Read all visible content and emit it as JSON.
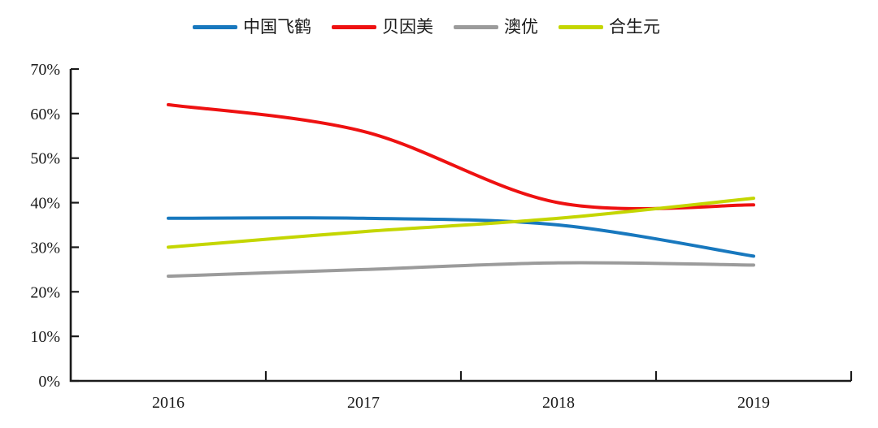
{
  "chart_data": {
    "type": "line",
    "categories": [
      "2016",
      "2017",
      "2018",
      "2019"
    ],
    "series": [
      {
        "name": "中国飞鹤",
        "color": "#1878BE",
        "values": [
          36.5,
          36.5,
          35.0,
          28.0
        ]
      },
      {
        "name": "贝因美",
        "color": "#EE1111",
        "values": [
          62.0,
          56.0,
          40.0,
          39.5
        ]
      },
      {
        "name": "澳优",
        "color": "#9B9B9B",
        "values": [
          23.5,
          25.0,
          26.5,
          26.0
        ]
      },
      {
        "name": "合生元",
        "color": "#C4D600",
        "values": [
          30.0,
          33.5,
          36.5,
          41.0
        ]
      }
    ],
    "ylim": [
      0,
      70
    ],
    "ytick_step": 10,
    "ytick_labels": [
      "0%",
      "10%",
      "20%",
      "30%",
      "40%",
      "50%",
      "60%",
      "70%"
    ],
    "grid": false,
    "legend_position": "top",
    "axis_color": "#1A1A1A",
    "smooth": true
  }
}
